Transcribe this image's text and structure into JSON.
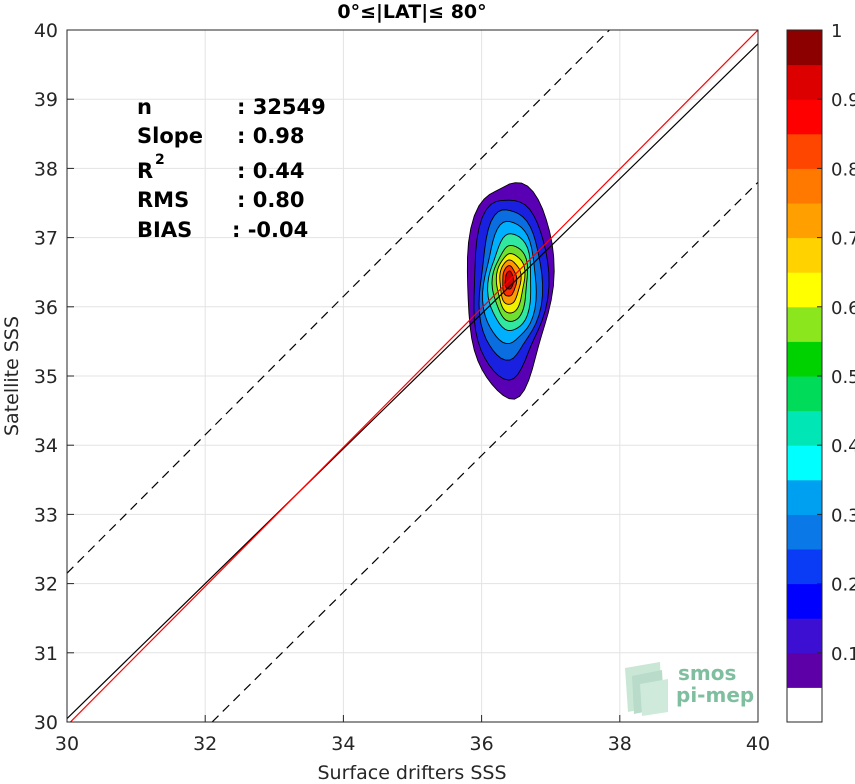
{
  "chart_data": {
    "type": "contour",
    "title": "0°≤|LAT|≤ 80°",
    "xlabel": "Surface drifters SSS",
    "ylabel": "Satellite SSS",
    "xlim": [
      30,
      40
    ],
    "ylim": [
      30,
      40
    ],
    "xticks": [
      "30",
      "32",
      "34",
      "36",
      "38",
      "40"
    ],
    "yticks": [
      "30",
      "31",
      "32",
      "33",
      "34",
      "35",
      "36",
      "37",
      "38",
      "39",
      "40"
    ],
    "grid": true,
    "stats": [
      {
        "label": "n",
        "value": ": 32549"
      },
      {
        "label": "Slope",
        "value": ": 0.98"
      },
      {
        "label": "R",
        "sup": "2",
        "value": ": 0.44"
      },
      {
        "label": "RMS",
        "value": ": 0.80"
      },
      {
        "label": "BIAS",
        "value": ": -0.04"
      }
    ],
    "lines": [
      {
        "role": "identity",
        "color": "#000000",
        "style": "solid",
        "points": [
          [
            30,
            30.05
          ],
          [
            40,
            39.8
          ]
        ]
      },
      {
        "role": "fit",
        "color": "#ff0000",
        "style": "solid",
        "points": [
          [
            30,
            29.95
          ],
          [
            40,
            40
          ]
        ]
      },
      {
        "role": "upper-bound",
        "color": "#000000",
        "style": "dashed",
        "points": [
          [
            30,
            32.15
          ],
          [
            40,
            42.15
          ]
        ]
      },
      {
        "role": "lower-bound",
        "color": "#000000",
        "style": "dashed",
        "points": [
          [
            32.1,
            30
          ],
          [
            40,
            37.8
          ]
        ]
      }
    ],
    "density_peak": {
      "x": 36.4,
      "y": 36.35
    },
    "contour_levels": [
      0.05,
      0.1,
      0.2,
      0.3,
      0.4,
      0.5,
      0.6,
      0.7,
      0.8,
      0.9
    ],
    "contour_shapes": [
      {
        "level": 0.05,
        "color": "#5a00b4",
        "cx": 36.4,
        "cy": 36.3,
        "rx": 0.62,
        "ry": 1.55
      },
      {
        "level": 0.15,
        "color": "#1a20e0",
        "cx": 36.4,
        "cy": 36.3,
        "rx": 0.54,
        "ry": 1.3
      },
      {
        "level": 0.25,
        "color": "#0a6ee0",
        "cx": 36.41,
        "cy": 36.32,
        "rx": 0.45,
        "ry": 1.08
      },
      {
        "level": 0.35,
        "color": "#00b0ff",
        "cx": 36.41,
        "cy": 36.33,
        "rx": 0.38,
        "ry": 0.88
      },
      {
        "level": 0.45,
        "color": "#30e8a0",
        "cx": 36.42,
        "cy": 36.34,
        "rx": 0.31,
        "ry": 0.7
      },
      {
        "level": 0.55,
        "color": "#70e030",
        "cx": 36.42,
        "cy": 36.34,
        "rx": 0.25,
        "ry": 0.55
      },
      {
        "level": 0.65,
        "color": "#f0f000",
        "cx": 36.42,
        "cy": 36.35,
        "rx": 0.2,
        "ry": 0.43
      },
      {
        "level": 0.75,
        "color": "#ff9900",
        "cx": 36.41,
        "cy": 36.36,
        "rx": 0.15,
        "ry": 0.32
      },
      {
        "level": 0.85,
        "color": "#ff3000",
        "cx": 36.4,
        "cy": 36.37,
        "rx": 0.1,
        "ry": 0.22
      },
      {
        "level": 0.95,
        "color": "#cc0000",
        "cx": 36.4,
        "cy": 36.38,
        "rx": 0.06,
        "ry": 0.13
      }
    ],
    "colorbar": {
      "min": 0,
      "max": 1,
      "ticks": [
        "0.1",
        "0.2",
        "0.3",
        "0.4",
        "0.5",
        "0.6",
        "0.7",
        "0.8",
        "0.9",
        "1"
      ],
      "tick_values": [
        0.1,
        0.2,
        0.3,
        0.4,
        0.5,
        0.6,
        0.7,
        0.8,
        0.9,
        1.0
      ],
      "bins": [
        {
          "from": 0.0,
          "to": 0.05,
          "color": "#ffffff"
        },
        {
          "from": 0.05,
          "to": 0.1,
          "color": "#5e00a8"
        },
        {
          "from": 0.1,
          "to": 0.15,
          "color": "#3c0fd2"
        },
        {
          "from": 0.15,
          "to": 0.2,
          "color": "#0000ff"
        },
        {
          "from": 0.2,
          "to": 0.25,
          "color": "#0a3cf5"
        },
        {
          "from": 0.25,
          "to": 0.3,
          "color": "#0a78e6"
        },
        {
          "from": 0.3,
          "to": 0.35,
          "color": "#00a0f0"
        },
        {
          "from": 0.35,
          "to": 0.4,
          "color": "#00ffff"
        },
        {
          "from": 0.4,
          "to": 0.45,
          "color": "#00e6b4"
        },
        {
          "from": 0.45,
          "to": 0.5,
          "color": "#00dc5a"
        },
        {
          "from": 0.5,
          "to": 0.55,
          "color": "#00d200"
        },
        {
          "from": 0.55,
          "to": 0.6,
          "color": "#8ce61e"
        },
        {
          "from": 0.6,
          "to": 0.65,
          "color": "#ffff00"
        },
        {
          "from": 0.65,
          "to": 0.7,
          "color": "#ffd200"
        },
        {
          "from": 0.7,
          "to": 0.75,
          "color": "#ffa000"
        },
        {
          "from": 0.75,
          "to": 0.8,
          "color": "#ff7800"
        },
        {
          "from": 0.8,
          "to": 0.85,
          "color": "#ff4600"
        },
        {
          "from": 0.85,
          "to": 0.9,
          "color": "#ff0000"
        },
        {
          "from": 0.9,
          "to": 0.95,
          "color": "#dc0000"
        },
        {
          "from": 0.95,
          "to": 1.0,
          "color": "#8c0000"
        }
      ]
    }
  },
  "logo": {
    "line1": "smos",
    "line2": "pi-mep"
  }
}
